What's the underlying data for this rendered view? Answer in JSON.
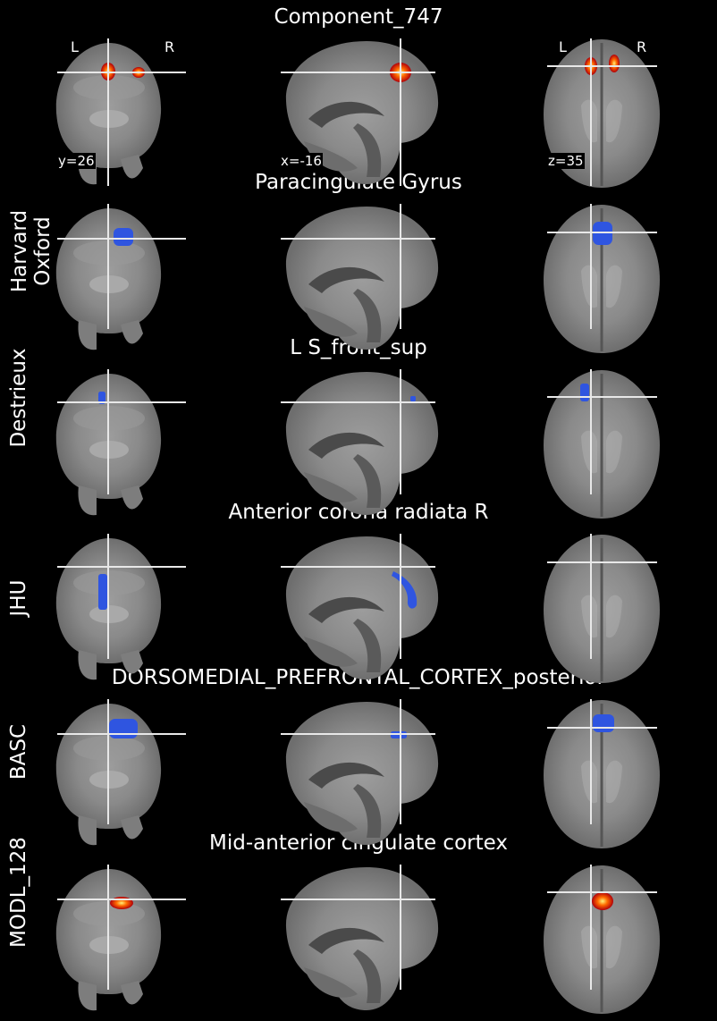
{
  "rows": [
    {
      "title": "Component_747",
      "atlas": "",
      "overlay": "heat"
    },
    {
      "title": "Paracingulate Gyrus",
      "atlas": "Harvard\nOxford",
      "overlay": "blue"
    },
    {
      "title": "L S_front_sup",
      "atlas": "Destrieux",
      "overlay": "blue"
    },
    {
      "title": "Anterior corona radiata R",
      "atlas": "JHU",
      "overlay": "blue"
    },
    {
      "title": "DORSOMEDIAL_PREFRONTAL_CORTEX_posterior",
      "atlas": "BASC",
      "overlay": "blue"
    },
    {
      "title": "Mid-anterior cingulate cortex",
      "atlas": "MODL_128",
      "overlay": "heat"
    }
  ],
  "coords": {
    "coronal": "y=26",
    "sagittal": "x=-16",
    "axial": "z=35"
  },
  "orientation": {
    "left": "L",
    "right": "R"
  },
  "colors": {
    "background": "#000000",
    "atlas_blue": "#2f55e0",
    "heat_outer": "#b0000a",
    "heat_mid": "#ff6a00",
    "heat_core": "#fff27a",
    "crosshair": "#e8e8e8"
  }
}
